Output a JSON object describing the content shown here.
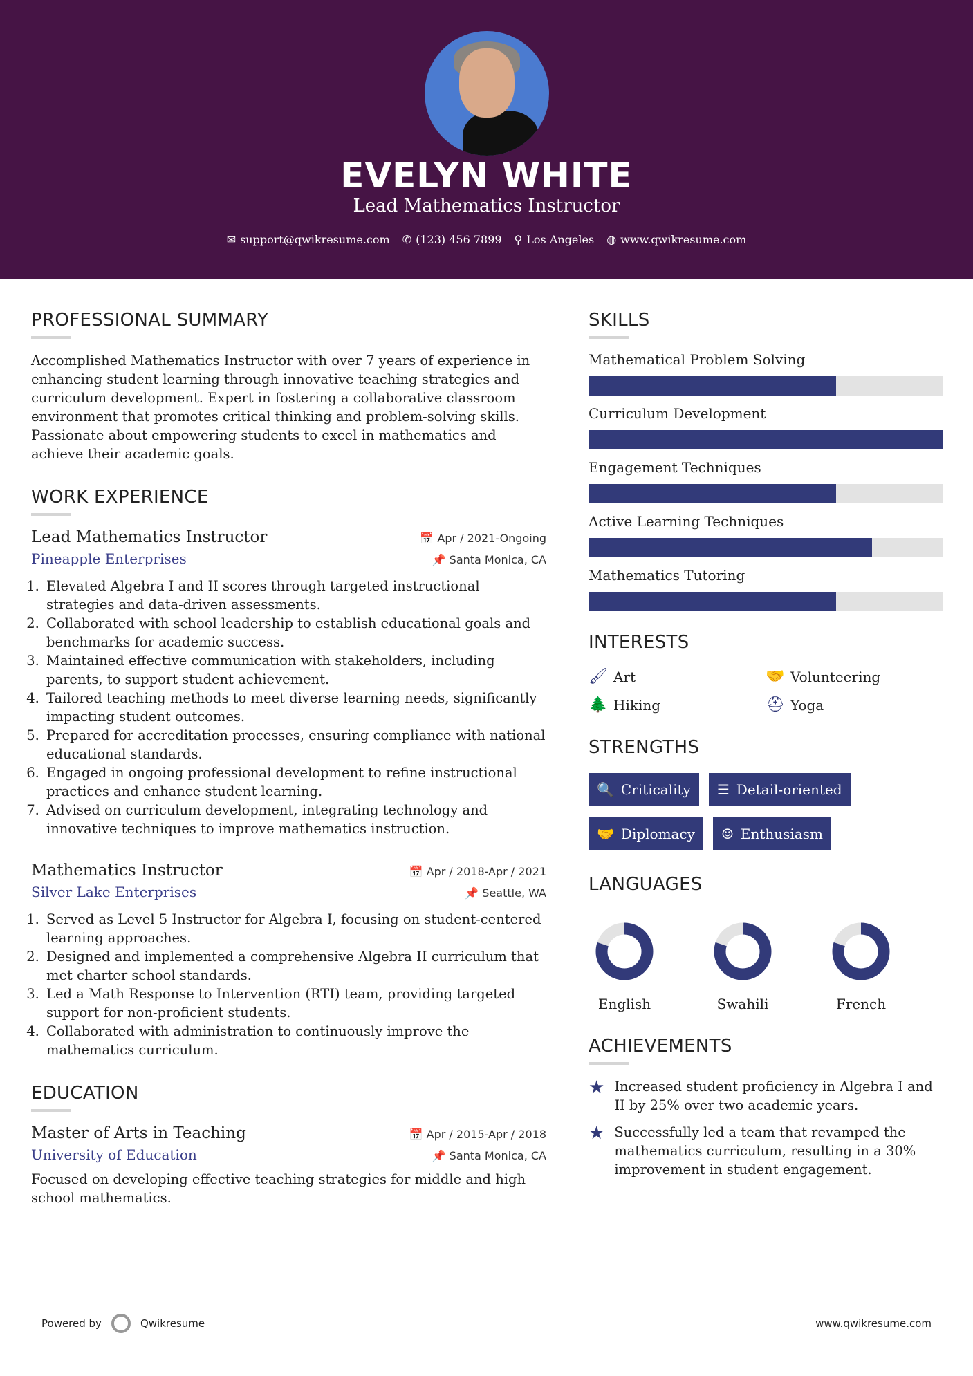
{
  "header": {
    "name": "EVELYN WHITE",
    "title": "Lead Mathematics Instructor",
    "contacts": [
      {
        "icon": "envelope-icon",
        "text": "support@qwikresume.com"
      },
      {
        "icon": "phone-icon",
        "text": "(123) 456 7899"
      },
      {
        "icon": "map-pin-icon",
        "text": "Los Angeles"
      },
      {
        "icon": "globe-icon",
        "text": "www.qwikresume.com"
      }
    ]
  },
  "summary": {
    "heading": "PROFESSIONAL SUMMARY",
    "text": "Accomplished Mathematics Instructor with over 7 years of experience in enhancing student learning through innovative teaching strategies and curriculum development. Expert in fostering a collaborative classroom environment that promotes critical thinking and problem-solving skills. Passionate about empowering students to excel in mathematics and achieve their academic goals."
  },
  "experience": {
    "heading": "WORK EXPERIENCE",
    "jobs": [
      {
        "title": "Lead Mathematics Instructor",
        "date": "Apr / 2021-Ongoing",
        "company": "Pineapple Enterprises",
        "location": "Santa Monica, CA",
        "bullets": [
          "Elevated Algebra I and II scores through targeted instructional strategies and data-driven assessments.",
          "Collaborated with school leadership to establish educational goals and benchmarks for academic success.",
          "Maintained effective communication with stakeholders, including parents, to support student achievement.",
          "Tailored teaching methods to meet diverse learning needs, significantly impacting student outcomes.",
          "Prepared for accreditation processes, ensuring compliance with national educational standards.",
          "Engaged in ongoing professional development to refine instructional practices and enhance student learning.",
          "Advised on curriculum development, integrating technology and innovative techniques to improve mathematics instruction."
        ]
      },
      {
        "title": "Mathematics Instructor",
        "date": "Apr / 2018-Apr / 2021",
        "company": "Silver Lake Enterprises",
        "location": "Seattle, WA",
        "bullets": [
          "Served as Level 5 Instructor for Algebra I, focusing on student-centered learning approaches.",
          "Designed and implemented a comprehensive Algebra II curriculum that met charter school standards.",
          "Led a Math Response to Intervention (RTI) team, providing targeted support for non-proficient students.",
          "Collaborated with administration to continuously improve the mathematics curriculum."
        ]
      }
    ]
  },
  "education": {
    "heading": "EDUCATION",
    "degree": "Master of Arts in Teaching",
    "date": "Apr / 2015-Apr / 2018",
    "school": "University of Education",
    "location": "Santa Monica, CA",
    "text": "Focused on developing effective teaching strategies for middle and high school mathematics."
  },
  "skills": {
    "heading": "SKILLS",
    "items": [
      {
        "label": "Mathematical Problem Solving",
        "level": 70
      },
      {
        "label": "Curriculum Development",
        "level": 100
      },
      {
        "label": "Engagement Techniques",
        "level": 70
      },
      {
        "label": "Active Learning Techniques",
        "level": 80
      },
      {
        "label": "Mathematics Tutoring",
        "level": 70
      }
    ]
  },
  "interests": {
    "heading": "INTERESTS",
    "items": [
      {
        "icon": "paintbrush-icon",
        "label": "Art"
      },
      {
        "icon": "handshake-icon",
        "label": "Volunteering"
      },
      {
        "icon": "tree-icon",
        "label": "Hiking"
      },
      {
        "icon": "lifebuoy-icon",
        "label": "Yoga"
      }
    ]
  },
  "strengths": {
    "heading": "STRENGTHS",
    "items": [
      {
        "icon": "search-icon",
        "label": "Criticality"
      },
      {
        "icon": "list-icon",
        "label": "Detail-oriented"
      },
      {
        "icon": "handshake-icon",
        "label": "Diplomacy"
      },
      {
        "icon": "smile-icon",
        "label": "Enthusiasm"
      }
    ]
  },
  "languages": {
    "heading": "LANGUAGES",
    "items": [
      {
        "label": "English",
        "level": 80
      },
      {
        "label": "Swahili",
        "level": 80
      },
      {
        "label": "French",
        "level": 80
      }
    ]
  },
  "achievements": {
    "heading": "ACHIEVEMENTS",
    "items": [
      "Increased student proficiency in Algebra I and II by 25% over two academic years.",
      "Successfully led a team that revamped the mathematics curriculum, resulting in a 30% improvement in student engagement."
    ]
  },
  "footer": {
    "powered": "Powered by",
    "brand": "Qwikresume",
    "site": "www.qwikresume.com"
  },
  "colors": {
    "header": "#461445",
    "accent": "#323a79",
    "track": "#e3e3e3"
  }
}
